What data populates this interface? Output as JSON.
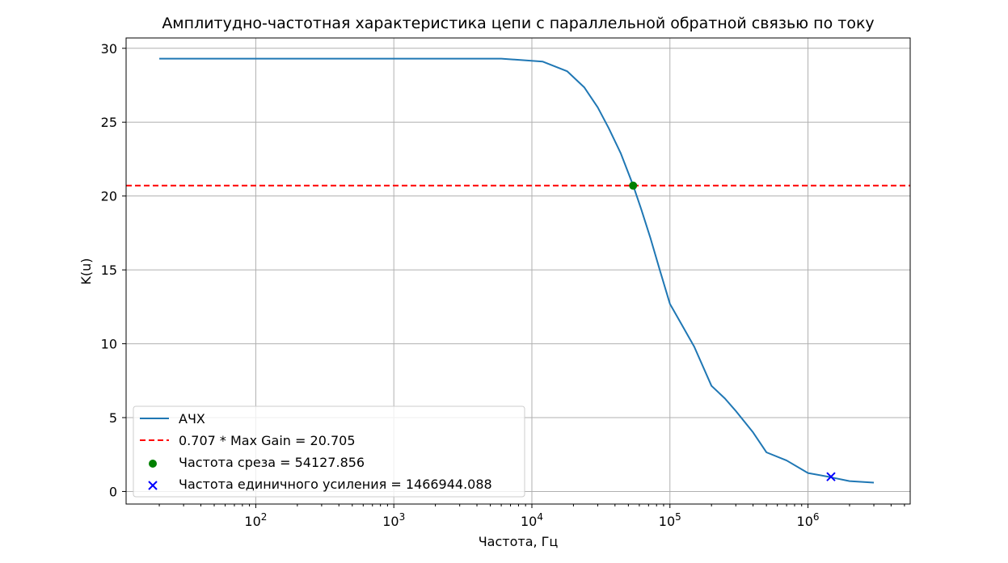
{
  "chart_data": {
    "type": "line",
    "title": "Амплитудно-частотная характеристика цепи с параллельной обратной связью по току",
    "xlabel": "Частота, Гц",
    "ylabel": "K(u)",
    "xscale": "log",
    "xlim": [
      11.5,
      5500000
    ],
    "ylim": [
      -0.85,
      30.7
    ],
    "grid": true,
    "legend_position": "lower-left",
    "x_ticks": [
      {
        "value": 100,
        "base": "10",
        "exp": "2"
      },
      {
        "value": 1000,
        "base": "10",
        "exp": "3"
      },
      {
        "value": 10000,
        "base": "10",
        "exp": "4"
      },
      {
        "value": 100000,
        "base": "10",
        "exp": "5"
      },
      {
        "value": 1000000,
        "base": "10",
        "exp": "6"
      }
    ],
    "y_ticks": [
      {
        "value": 0,
        "label": "0"
      },
      {
        "value": 5,
        "label": "5"
      },
      {
        "value": 10,
        "label": "10"
      },
      {
        "value": 15,
        "label": "15"
      },
      {
        "value": 20,
        "label": "20"
      },
      {
        "value": 25,
        "label": "25"
      },
      {
        "value": 30,
        "label": "30"
      }
    ],
    "series": [
      {
        "name": "АЧХ",
        "kind": "line",
        "color": "#1f77b4",
        "x": [
          20,
          100,
          1000,
          6000,
          12000,
          18000,
          24000,
          30000,
          36000,
          44000,
          54000,
          62000,
          72000,
          85000,
          100000,
          120000,
          150000,
          200000,
          250000,
          300000,
          400000,
          500000,
          700000,
          1000000,
          1400000,
          2000000,
          3000000
        ],
        "y": [
          29.3,
          29.3,
          29.3,
          29.3,
          29.1,
          28.45,
          27.35,
          26.0,
          24.6,
          22.9,
          20.75,
          19.1,
          17.2,
          14.9,
          12.7,
          11.4,
          9.8,
          7.15,
          6.3,
          5.45,
          4.0,
          2.65,
          2.1,
          1.25,
          1.0,
          0.7,
          0.6
        ]
      },
      {
        "name": "0.707 * Max Gain = 20.705",
        "kind": "hline",
        "color": "#ff0000",
        "y": 20.705
      },
      {
        "name": "Частота среза = 54127.856",
        "kind": "scatter",
        "marker": "circle",
        "color": "#008000",
        "x": [
          54127.856
        ],
        "y": [
          20.705
        ]
      },
      {
        "name": "Частота единичного усиления = 1466944.088",
        "kind": "scatter",
        "marker": "x",
        "color": "#0000ff",
        "x": [
          1466944.088
        ],
        "y": [
          1.0
        ]
      }
    ]
  }
}
